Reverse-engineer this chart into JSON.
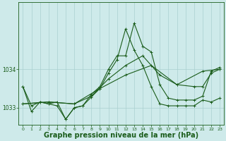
{
  "background_color": "#ceeaea",
  "grid_color": "#aacfcf",
  "line_color": "#1a5c1a",
  "xlabel": "Graphe pression niveau de la mer (hPa)",
  "xlabel_fontsize": 7,
  "xlim": [
    -0.5,
    23.5
  ],
  "ylim": [
    1032.55,
    1035.75
  ],
  "yticks": [
    1033,
    1034
  ],
  "xticks": [
    0,
    1,
    2,
    3,
    4,
    5,
    6,
    7,
    8,
    9,
    10,
    11,
    12,
    13,
    14,
    15,
    16,
    17,
    18,
    19,
    20,
    21,
    22,
    23
  ],
  "series": [
    {
      "x": [
        0,
        1,
        2,
        3,
        4,
        5,
        6,
        7,
        8,
        9,
        10,
        11,
        12,
        13,
        14,
        15,
        16,
        17,
        18,
        19,
        20,
        21,
        22,
        23
      ],
      "y": [
        1033.55,
        1032.9,
        1033.15,
        1033.1,
        1033.15,
        1032.7,
        1033.0,
        1033.05,
        1033.35,
        1033.55,
        1034.0,
        1034.35,
        1034.35,
        1035.2,
        1034.6,
        1034.45,
        1033.6,
        1033.25,
        1033.2,
        1033.2,
        1033.2,
        1033.3,
        1033.95,
        1034.05
      ]
    },
    {
      "x": [
        0,
        3,
        6,
        9,
        12,
        15,
        18,
        21,
        23
      ],
      "y": [
        1033.1,
        1033.15,
        1033.1,
        1033.5,
        1033.85,
        1034.1,
        1033.6,
        1033.95,
        1034.0
      ]
    },
    {
      "x": [
        0,
        1,
        2,
        3,
        4,
        5,
        6,
        7,
        8,
        9,
        10,
        11,
        12,
        13,
        14,
        15,
        16,
        17,
        18,
        19,
        20,
        21,
        22,
        23
      ],
      "y": [
        1033.55,
        1033.05,
        1033.15,
        1033.1,
        1033.05,
        1032.7,
        1033.0,
        1033.05,
        1033.28,
        1033.5,
        1033.9,
        1034.25,
        1035.05,
        1034.5,
        1034.1,
        1033.55,
        1033.1,
        1033.05,
        1033.05,
        1033.05,
        1033.05,
        1033.2,
        1033.15,
        1033.25
      ]
    },
    {
      "x": [
        0,
        3,
        6,
        8,
        10,
        12,
        14,
        16,
        18,
        20,
        21,
        22,
        23
      ],
      "y": [
        1033.1,
        1033.15,
        1033.1,
        1033.3,
        1033.75,
        1034.1,
        1034.35,
        1033.85,
        1033.6,
        1033.55,
        1033.55,
        1033.9,
        1034.0
      ]
    }
  ]
}
